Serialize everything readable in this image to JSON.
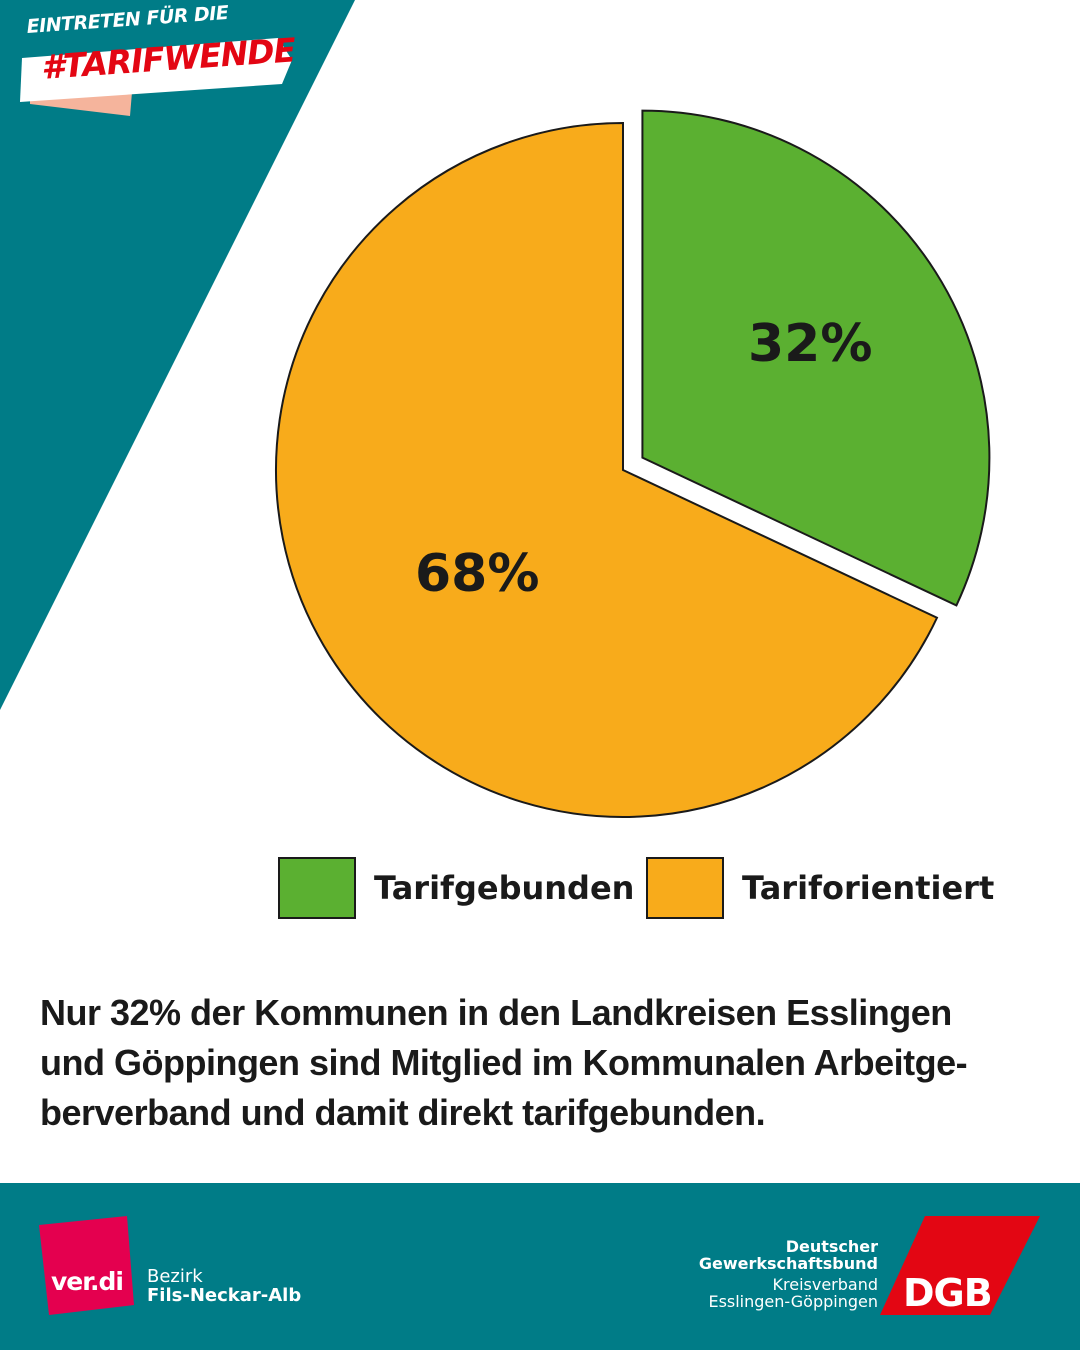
{
  "header": {
    "badge_top": "EINTRETEN FÜR DIE",
    "badge_main": "#TARIFWENDE"
  },
  "colors": {
    "teal": "#007c87",
    "green": "#5bb031",
    "orange": "#f8ab1b",
    "red": "#e30613",
    "verdi": "#e4004f"
  },
  "chart_data": {
    "type": "pie",
    "title": "",
    "slices": [
      {
        "label": "Tarifgebunden",
        "value": 32,
        "display": "32%",
        "color": "#5bb031",
        "exploded": true
      },
      {
        "label": "Tariforientiert",
        "value": 68,
        "display": "68%",
        "color": "#f8ab1b",
        "exploded": false
      }
    ],
    "legend_position": "bottom"
  },
  "caption": "Nur 32% der Kommunen in den Landkreisen Esslingen und Göppingen sind Mitglied im Kommunalen Arbeitge-berverband und damit direkt tarifgebunden.",
  "caption_lines": [
    "Nur 32% der Kommunen in den Landkreisen Esslingen",
    "und Göppingen sind Mitglied im Kommunalen Arbeitge-",
    "berverband und damit direkt tarifgebunden."
  ],
  "footer": {
    "verdi_logo": "ver.di",
    "verdi_line1": "Bezirk",
    "verdi_line2": "Fils-Neckar-Alb",
    "dgb_line1": "Deutscher",
    "dgb_line2": "Gewerkschaftsbund",
    "dgb_line3": "Kreisverband",
    "dgb_line4": "Esslingen-Göppingen",
    "dgb_logo": "DGB"
  }
}
